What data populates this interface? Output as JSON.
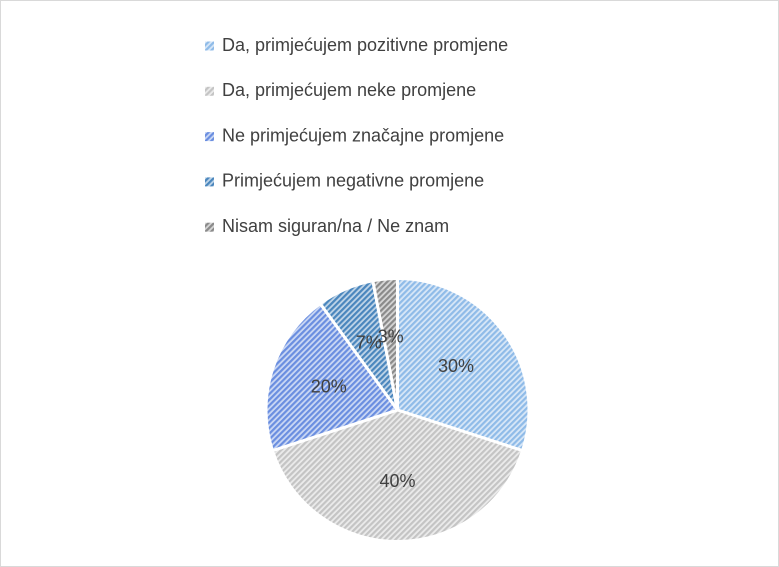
{
  "chart_data": {
    "type": "pie",
    "categories": [
      "Da, primjećujem pozitivne promjene",
      "Da, primjećujem neke promjene",
      "Ne primjećujem značajne promjene",
      "Primjećujem negativne promjene",
      "Nisam siguran/na / Ne znam"
    ],
    "values": [
      30,
      40,
      20,
      7,
      3
    ],
    "value_labels": [
      "30%",
      "40%",
      "20%",
      "7%",
      "3%"
    ],
    "colors": [
      "#8fbbe8",
      "#c4c4c4",
      "#6a8ee0",
      "#4a86bd",
      "#8a8a8a"
    ],
    "legend": "top"
  }
}
